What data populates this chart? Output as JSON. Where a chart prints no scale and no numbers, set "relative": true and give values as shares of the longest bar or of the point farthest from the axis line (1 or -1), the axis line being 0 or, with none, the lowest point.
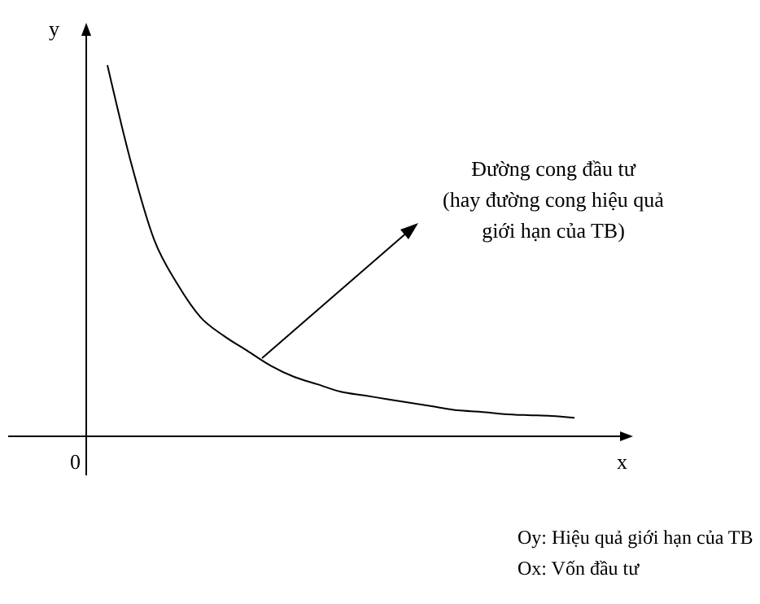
{
  "chart_data": {
    "type": "line",
    "relative": true,
    "xlabel": "x",
    "ylabel": "y",
    "categories": [
      null,
      null,
      null,
      null,
      null,
      null,
      null,
      null,
      null,
      null,
      null,
      null,
      null,
      null,
      null,
      null,
      null,
      null,
      null,
      null,
      null
    ],
    "series": [
      {
        "color": "#000000",
        "values": [
          1.0,
          0.74,
          0.53,
          0.41,
          0.32,
          0.27,
          0.23,
          0.19,
          0.16,
          0.14,
          0.12,
          0.11,
          0.1,
          0.09,
          0.08,
          0.07,
          0.066,
          0.06,
          0.057,
          0.055,
          0.05
        ]
      }
    ],
    "annotations": [
      "0",
      "Đường cong đầu tư\n(hay đường cong hiệu quả\ngiới hạn của TB)",
      "Oy: Hiệu quả giới hạn của TB",
      "Ox: Vốn đầu tư"
    ],
    "marker": "none",
    "line_style": "solid",
    "grid": false,
    "legend": false
  }
}
